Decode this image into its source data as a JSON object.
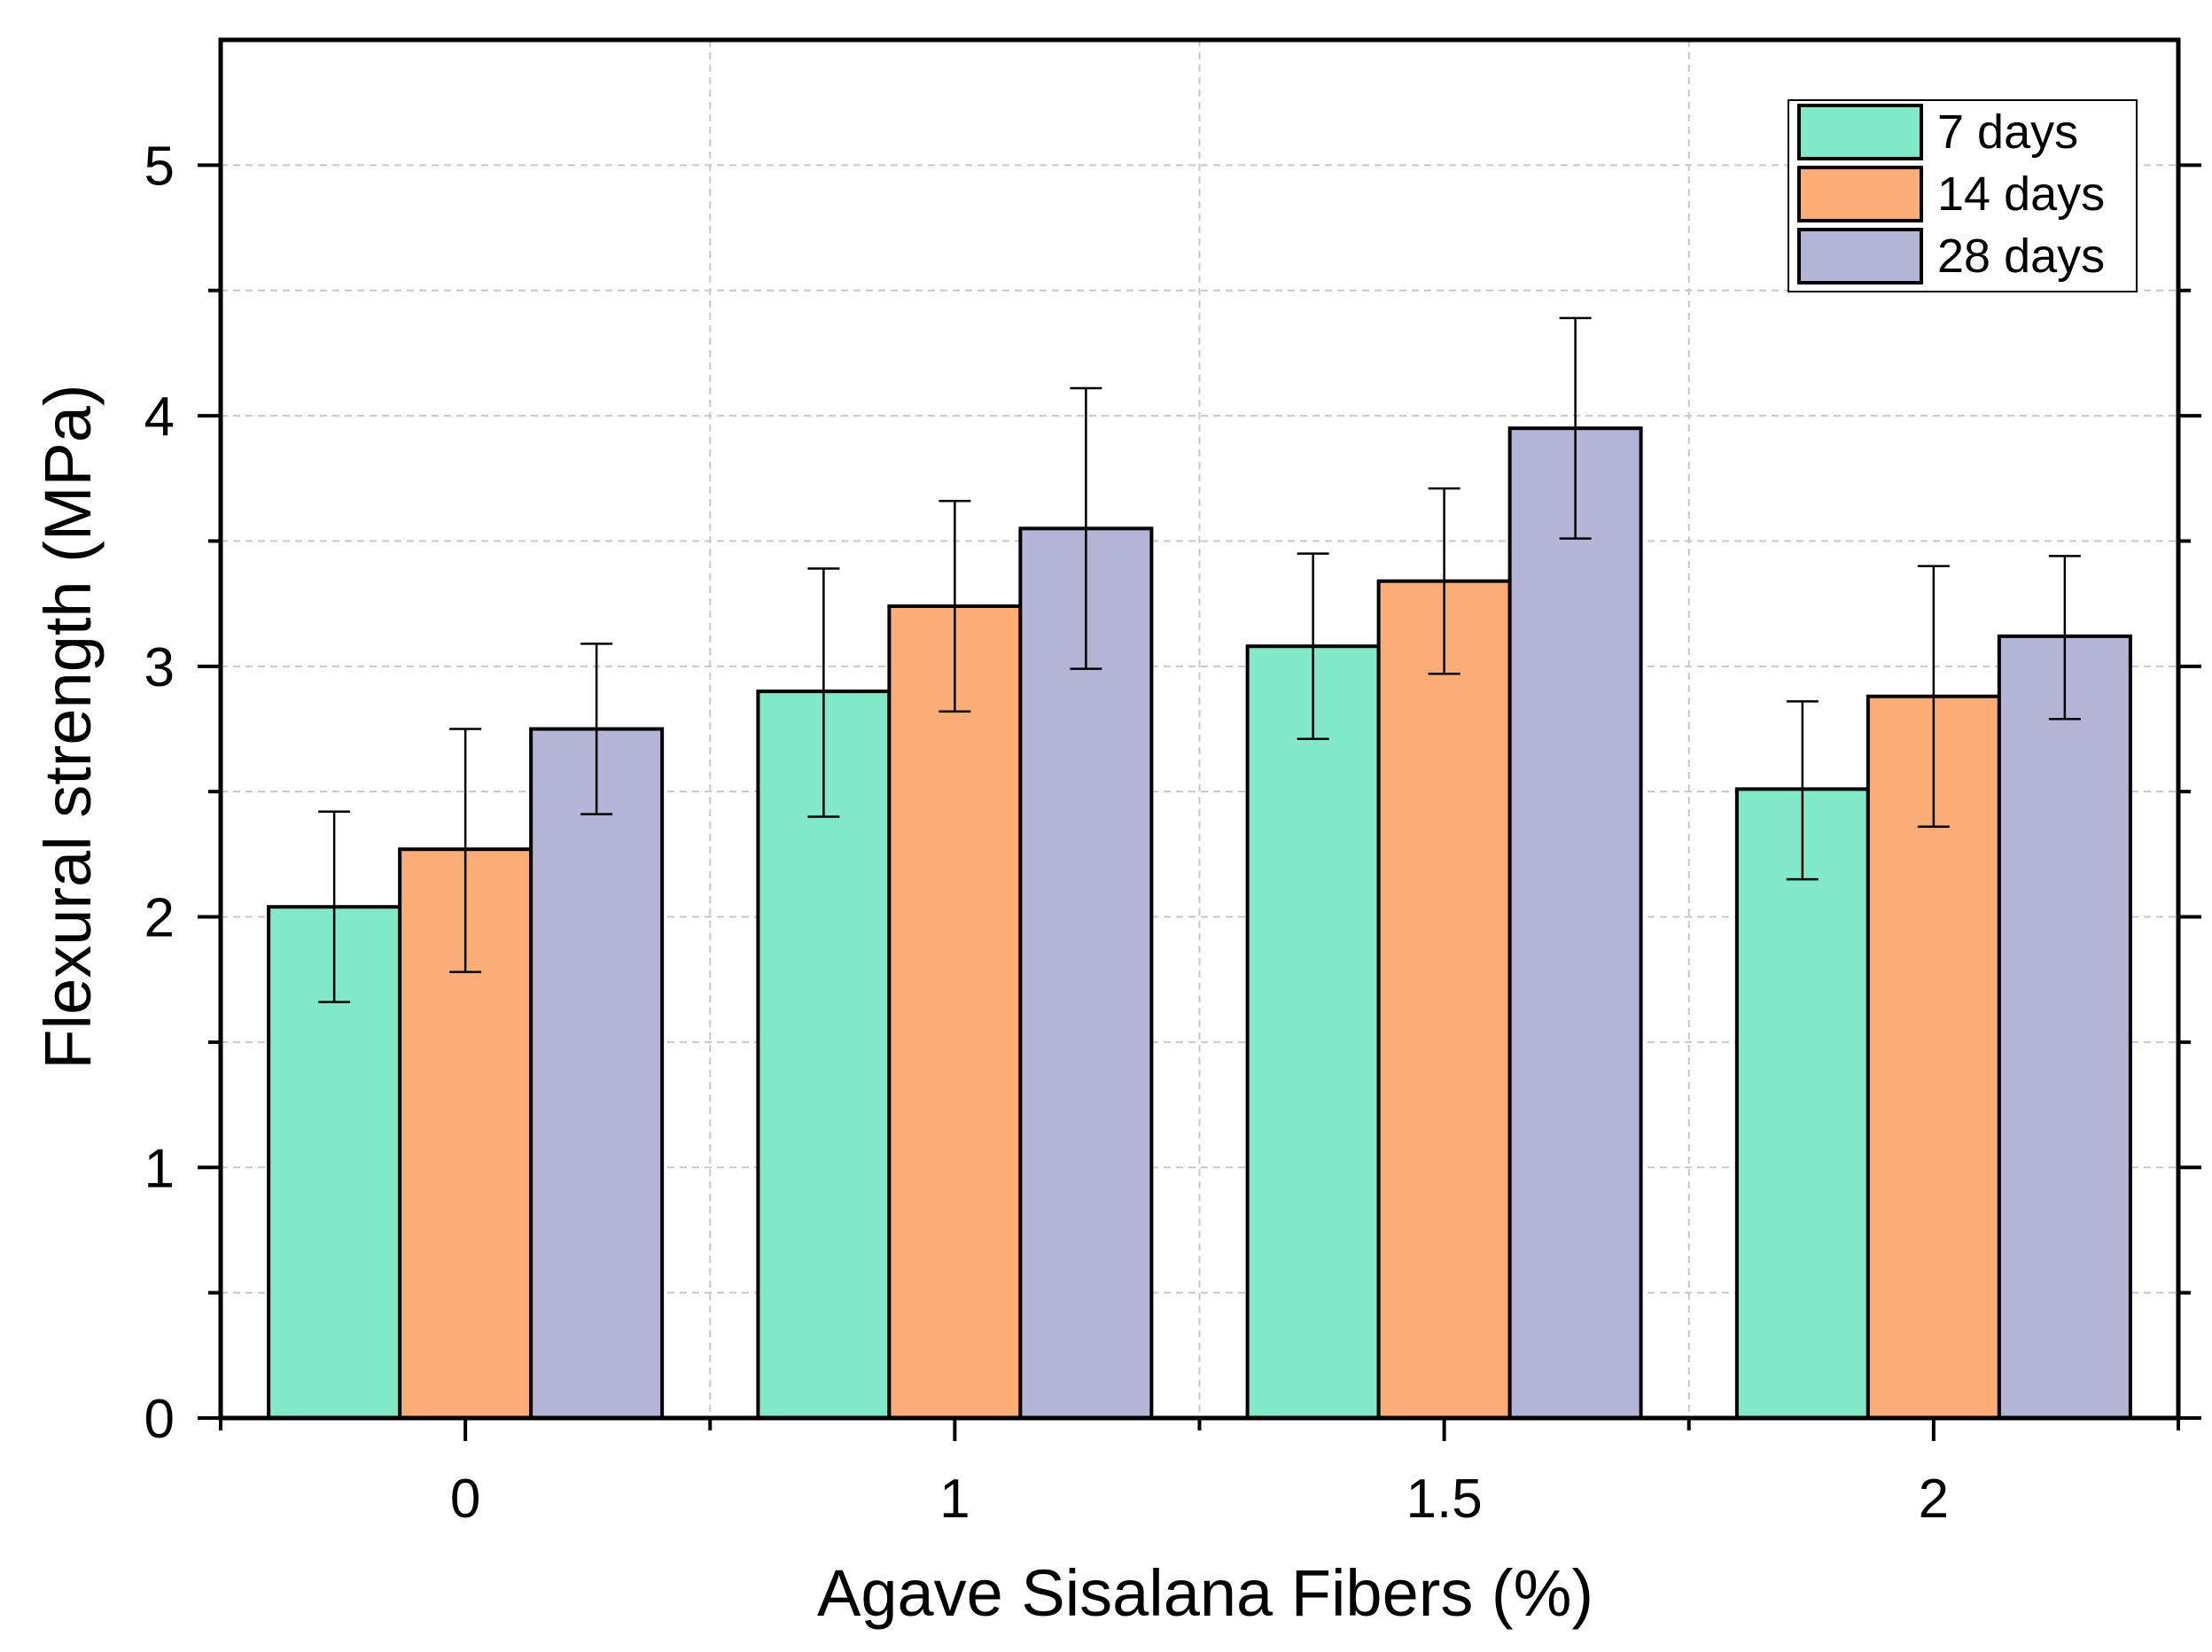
{
  "chart_data": {
    "type": "bar",
    "xlabel": "Agave Sisalana Fibers (%)",
    "ylabel": "Flexural strength (MPa)",
    "categories": [
      "0",
      "1",
      "1.5",
      "2"
    ],
    "ylim": [
      0,
      5.5
    ],
    "yticks": [
      "0",
      "1",
      "2",
      "3",
      "4",
      "5"
    ],
    "grid": true,
    "legend_position": "top-right",
    "error_bars": true,
    "series": [
      {
        "name": "7 days",
        "color": "#81e8c8",
        "values": [
          2.04,
          2.9,
          3.08,
          2.51
        ],
        "err_low": [
          1.66,
          2.4,
          2.71,
          2.15
        ],
        "err_high": [
          2.42,
          3.39,
          3.45,
          2.86
        ]
      },
      {
        "name": "14 days",
        "color": "#fbad75",
        "values": [
          2.27,
          3.24,
          3.34,
          2.88
        ],
        "err_low": [
          1.78,
          2.82,
          2.97,
          2.36
        ],
        "err_high": [
          2.75,
          3.66,
          3.71,
          3.4
        ]
      },
      {
        "name": "28 days",
        "color": "#b5b5d8",
        "values": [
          2.75,
          3.55,
          3.95,
          3.12
        ],
        "err_low": [
          2.41,
          2.99,
          3.51,
          2.79
        ],
        "err_high": [
          3.09,
          4.11,
          4.39,
          3.44
        ]
      }
    ]
  }
}
